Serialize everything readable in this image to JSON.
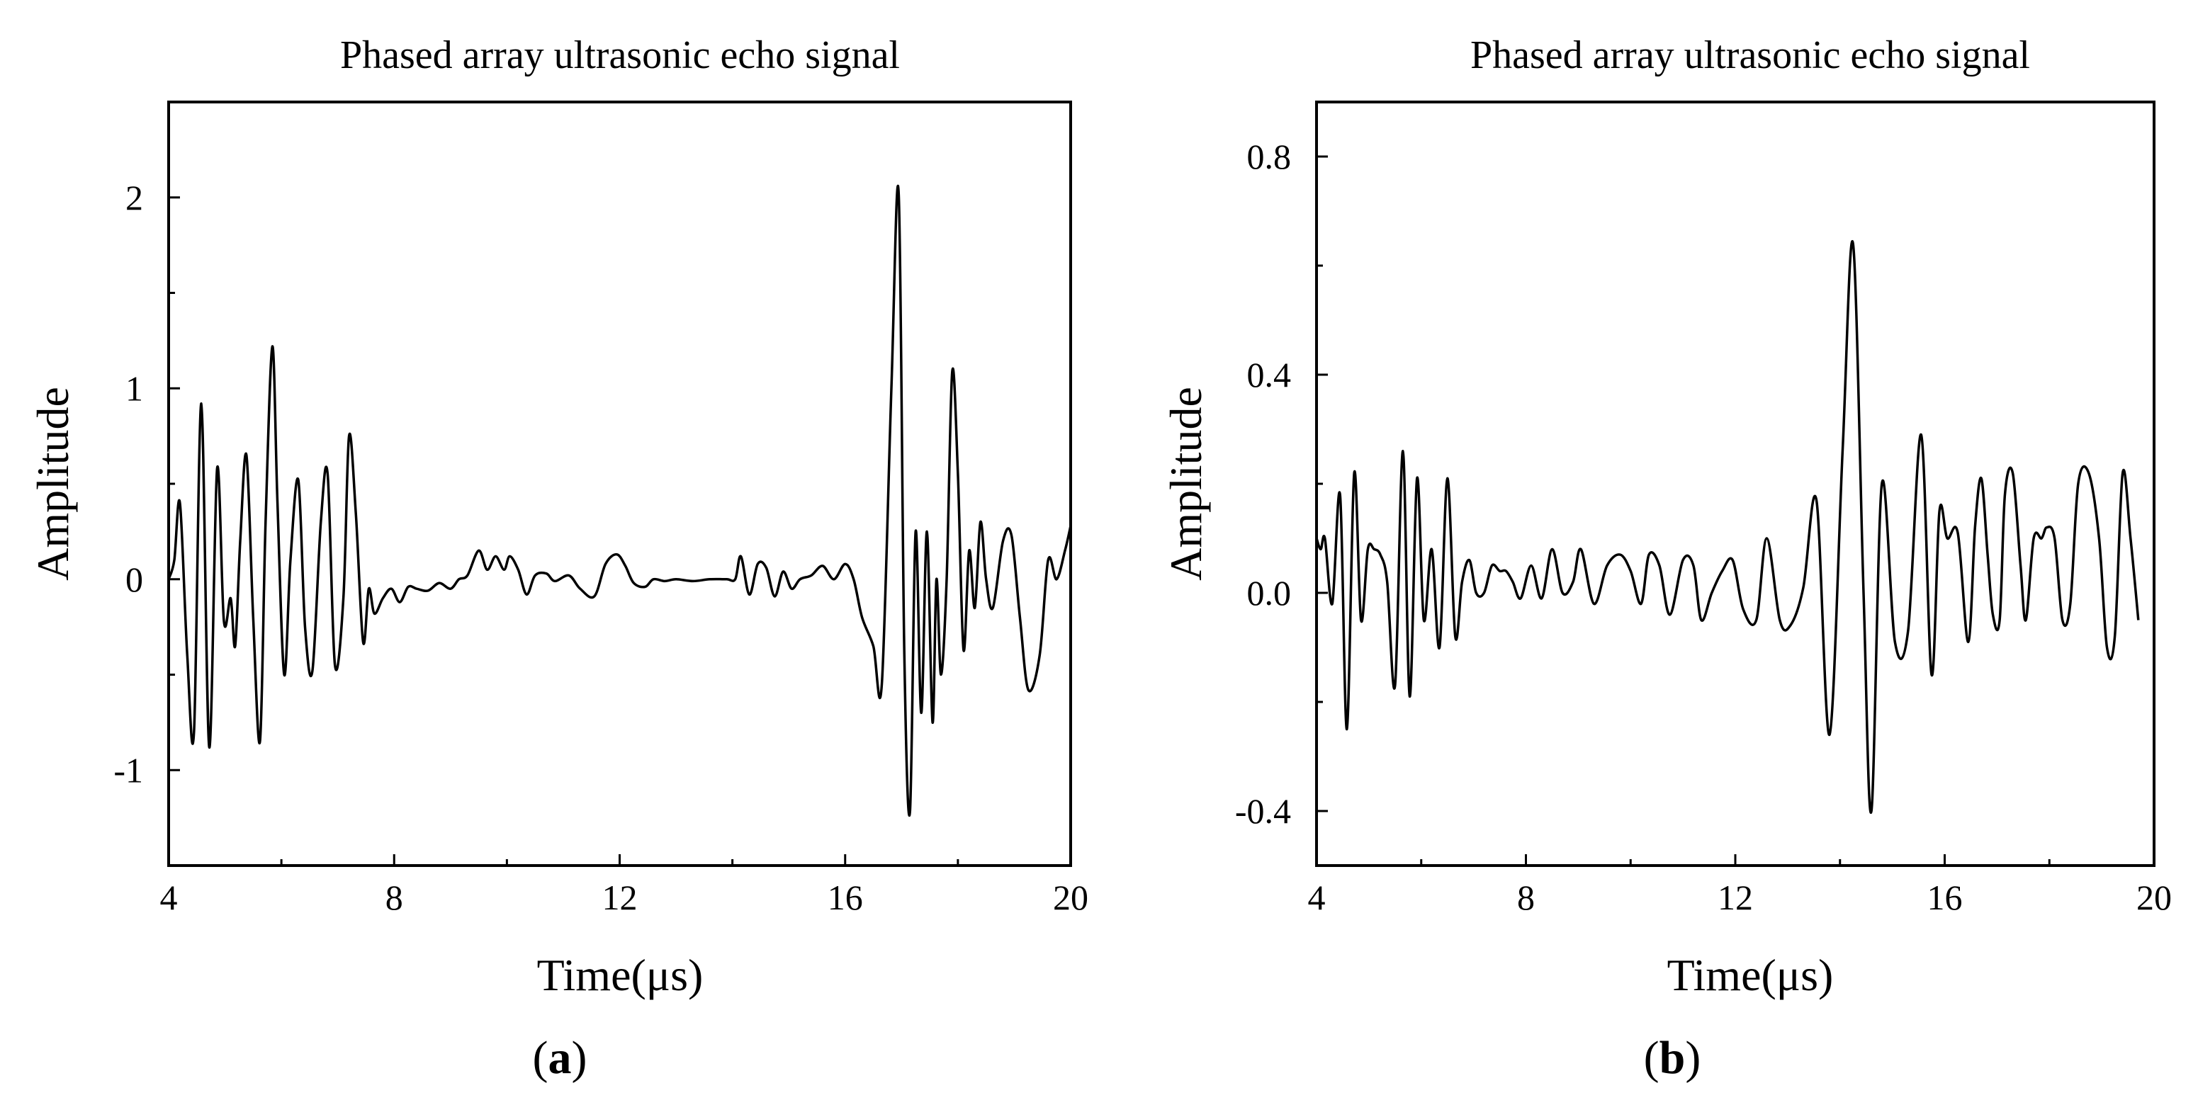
{
  "chart_data": [
    {
      "type": "line",
      "panel_label": "a",
      "title": "Phased array ultrasonic echo signal",
      "xlabel": "Time(μs)",
      "ylabel": "Amplitude",
      "xlim": [
        4,
        20
      ],
      "ylim": [
        -1.5,
        2.5
      ],
      "xticks": [
        4,
        8,
        12,
        16,
        20
      ],
      "xtick_labels": [
        "4",
        "8",
        "12",
        "16",
        "20"
      ],
      "yticks": [
        -1,
        0,
        1,
        2
      ],
      "ytick_labels": [
        "-1",
        "0",
        "1",
        "2"
      ],
      "grid": false,
      "series": [
        {
          "x": [
            4.0,
            4.1,
            4.2,
            4.33,
            4.45,
            4.58,
            4.72,
            4.86,
            4.98,
            5.1,
            5.18,
            5.27,
            5.38,
            5.5,
            5.62,
            5.72,
            5.84,
            5.93,
            6.05,
            6.16,
            6.3,
            6.42,
            6.55,
            6.7,
            6.82,
            6.95,
            7.1,
            7.2,
            7.32,
            7.45,
            7.55,
            7.65,
            7.8,
            7.95,
            8.1,
            8.25,
            8.4,
            8.6,
            8.8,
            9.0,
            9.15,
            9.3,
            9.5,
            9.65,
            9.8,
            9.95,
            10.05,
            10.2,
            10.35,
            10.5,
            10.7,
            10.85,
            11.1,
            11.3,
            11.55,
            11.75,
            11.95,
            12.1,
            12.25,
            12.45,
            12.6,
            12.8,
            13.0,
            13.3,
            13.6,
            13.9,
            14.05,
            14.15,
            14.3,
            14.45,
            14.6,
            14.75,
            14.9,
            15.05,
            15.2,
            15.4,
            15.6,
            15.8,
            16.0,
            16.15,
            16.3,
            16.5,
            16.65,
            16.82,
            16.95,
            17.05,
            17.15,
            17.25,
            17.35,
            17.45,
            17.55,
            17.62,
            17.7,
            17.8,
            17.9,
            18.0,
            18.1,
            18.2,
            18.3,
            18.4,
            18.5,
            18.62,
            18.8,
            18.95,
            19.1,
            19.25,
            19.45,
            19.6,
            19.75,
            19.9,
            20.0
          ],
          "y": [
            0.0,
            0.1,
            0.4,
            -0.4,
            -0.8,
            0.92,
            -0.88,
            0.58,
            -0.22,
            -0.1,
            -0.35,
            0.2,
            0.65,
            -0.2,
            -0.85,
            0.3,
            1.22,
            0.4,
            -0.5,
            0.1,
            0.52,
            -0.25,
            -0.48,
            0.3,
            0.55,
            -0.45,
            -0.1,
            0.75,
            0.35,
            -0.33,
            -0.05,
            -0.18,
            -0.1,
            -0.05,
            -0.12,
            -0.04,
            -0.05,
            -0.06,
            -0.02,
            -0.05,
            0.0,
            0.02,
            0.15,
            0.05,
            0.12,
            0.05,
            0.12,
            0.05,
            -0.08,
            0.02,
            0.03,
            -0.01,
            0.02,
            -0.05,
            -0.09,
            0.08,
            0.13,
            0.07,
            -0.02,
            -0.04,
            0.0,
            -0.01,
            0.0,
            -0.01,
            0.0,
            0.0,
            0.0,
            0.12,
            -0.08,
            0.08,
            0.06,
            -0.09,
            0.04,
            -0.05,
            0.0,
            0.02,
            0.07,
            0.0,
            0.08,
            0.0,
            -0.2,
            -0.35,
            -0.55,
            1.0,
            2.02,
            -0.4,
            -1.22,
            0.25,
            -0.7,
            0.25,
            -0.75,
            0.0,
            -0.5,
            0.0,
            1.09,
            0.55,
            -0.37,
            0.15,
            -0.15,
            0.3,
            0.0,
            -0.15,
            0.2,
            0.23,
            -0.2,
            -0.58,
            -0.4,
            0.1,
            0.0,
            0.15,
            0.28
          ]
        }
      ]
    },
    {
      "type": "line",
      "panel_label": "b",
      "title": "Phased array ultrasonic echo signal",
      "xlabel": "Time(μs)",
      "ylabel": "Amplitude",
      "xlim": [
        4,
        20
      ],
      "ylim": [
        -0.5,
        0.9
      ],
      "xticks": [
        4,
        8,
        12,
        16,
        20
      ],
      "xtick_labels": [
        "4",
        "8",
        "12",
        "16",
        "20"
      ],
      "yticks": [
        -0.4,
        0.0,
        0.4,
        0.8
      ],
      "ytick_labels": [
        "-0.4",
        "0.0",
        "0.4",
        "0.8"
      ],
      "grid": false,
      "series": [
        {
          "x": [
            4.0,
            4.08,
            4.16,
            4.3,
            4.45,
            4.58,
            4.72,
            4.85,
            4.98,
            5.1,
            5.22,
            5.35,
            5.5,
            5.65,
            5.78,
            5.92,
            6.05,
            6.2,
            6.35,
            6.5,
            6.65,
            6.78,
            6.92,
            7.05,
            7.2,
            7.35,
            7.5,
            7.62,
            7.75,
            7.9,
            8.1,
            8.3,
            8.5,
            8.7,
            8.9,
            9.05,
            9.3,
            9.55,
            9.8,
            10.0,
            10.2,
            10.35,
            10.55,
            10.75,
            11.0,
            11.2,
            11.35,
            11.55,
            11.75,
            11.95,
            12.15,
            12.4,
            12.6,
            12.85,
            13.05,
            13.3,
            13.55,
            13.8,
            14.05,
            14.25,
            14.45,
            14.6,
            14.8,
            15.05,
            15.3,
            15.55,
            15.75,
            15.9,
            16.05,
            16.25,
            16.45,
            16.58,
            16.7,
            16.82,
            16.92,
            17.05,
            17.15,
            17.3,
            17.45,
            17.55,
            17.7,
            17.85,
            17.95,
            18.1,
            18.25,
            18.4,
            18.55,
            18.75,
            18.95,
            19.1,
            19.25,
            19.4,
            19.55,
            19.7
          ],
          "y": [
            0.1,
            0.08,
            0.1,
            -0.02,
            0.18,
            -0.25,
            0.22,
            -0.05,
            0.08,
            0.08,
            0.07,
            0.02,
            -0.17,
            0.26,
            -0.19,
            0.21,
            -0.05,
            0.08,
            -0.1,
            0.21,
            -0.08,
            0.02,
            0.06,
            0.0,
            0.0,
            0.05,
            0.04,
            0.04,
            0.02,
            -0.01,
            0.05,
            -0.01,
            0.08,
            0.0,
            0.02,
            0.08,
            -0.02,
            0.05,
            0.07,
            0.04,
            -0.02,
            0.07,
            0.05,
            -0.04,
            0.06,
            0.05,
            -0.05,
            0.0,
            0.04,
            0.06,
            -0.03,
            -0.05,
            0.1,
            -0.05,
            -0.06,
            0.01,
            0.17,
            -0.26,
            0.26,
            0.64,
            0.0,
            -0.4,
            0.2,
            -0.09,
            -0.07,
            0.29,
            -0.15,
            0.15,
            0.1,
            0.11,
            -0.09,
            0.12,
            0.21,
            0.07,
            -0.04,
            -0.05,
            0.18,
            0.22,
            0.05,
            -0.05,
            0.1,
            0.1,
            0.12,
            0.1,
            -0.05,
            -0.02,
            0.2,
            0.22,
            0.1,
            -0.1,
            -0.08,
            0.22,
            0.1,
            -0.05
          ]
        }
      ]
    }
  ]
}
